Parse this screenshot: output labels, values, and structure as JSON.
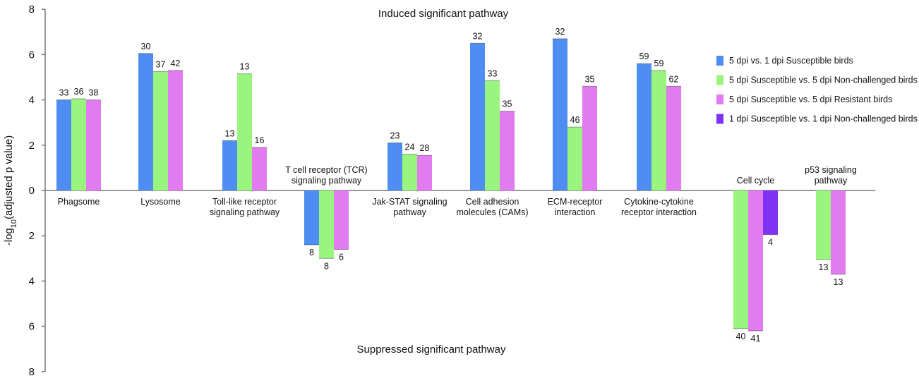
{
  "chart_data": {
    "type": "bar",
    "title": "Induced significant pathway",
    "subtitle": "Suppressed significant pathway",
    "ylabel": "-log10(adjusted p value)",
    "ylabel_parts": {
      "pre": "-log",
      "sub": "10",
      "post": "(adjusted p value)"
    },
    "ylim": [
      -8,
      8
    ],
    "y_ticks": [
      8,
      6,
      4,
      2,
      0,
      2,
      4,
      6,
      8
    ],
    "y_tick_values": [
      8,
      6,
      4,
      2,
      0,
      -2,
      -4,
      -6,
      -8
    ],
    "legend_position": "right",
    "series": [
      {
        "name": "5 dpi vs. 1 dpi Susceptible birds",
        "color": "#4e8ef2"
      },
      {
        "name": "5 dpi Susceptible vs. 5 dpi Non-challenged birds",
        "color": "#99f57e"
      },
      {
        "name": "5 dpi Susceptible vs. 5 dpi Resistant birds",
        "color": "#e27af0"
      },
      {
        "name": "1 dpi Susceptible vs. 1 dpi Non-challenged birds",
        "color": "#7d32f5"
      }
    ],
    "categories": [
      {
        "label": [
          "Phagsome"
        ],
        "label_position": "below",
        "bars": [
          {
            "series": 0,
            "value": 4.0,
            "label": "33"
          },
          {
            "series": 1,
            "value": 4.05,
            "label": "36"
          },
          {
            "series": 2,
            "value": 4.0,
            "label": "38"
          }
        ]
      },
      {
        "label": [
          "Lysosome"
        ],
        "label_position": "below",
        "bars": [
          {
            "series": 0,
            "value": 6.05,
            "label": "30"
          },
          {
            "series": 1,
            "value": 5.25,
            "label": "37"
          },
          {
            "series": 2,
            "value": 5.3,
            "label": "42"
          }
        ]
      },
      {
        "label": [
          "Toll-like receptor",
          "signaling pathway"
        ],
        "label_position": "below",
        "bars": [
          {
            "series": 0,
            "value": 2.2,
            "label": "13"
          },
          {
            "series": 1,
            "value": 5.15,
            "label": "13"
          },
          {
            "series": 2,
            "value": 1.9,
            "label": "16"
          }
        ]
      },
      {
        "label": [
          "T cell receptor (TCR)",
          "signaling pathway"
        ],
        "label_position": "above",
        "bars": [
          {
            "series": 0,
            "value": -2.4,
            "label": "8"
          },
          {
            "series": 1,
            "value": -3.0,
            "label": "8"
          },
          {
            "series": 2,
            "value": -2.6,
            "label": "6"
          }
        ]
      },
      {
        "label": [
          "Jak-STAT signaling",
          "pathway"
        ],
        "label_position": "below",
        "bars": [
          {
            "series": 0,
            "value": 2.1,
            "label": "23"
          },
          {
            "series": 1,
            "value": 1.6,
            "label": "24"
          },
          {
            "series": 2,
            "value": 1.55,
            "label": "28"
          }
        ]
      },
      {
        "label": [
          "Cell adhesion",
          "molecules (CAMs)"
        ],
        "label_position": "below",
        "bars": [
          {
            "series": 0,
            "value": 6.5,
            "label": "32"
          },
          {
            "series": 1,
            "value": 4.85,
            "label": "33"
          },
          {
            "series": 2,
            "value": 3.5,
            "label": "35"
          }
        ]
      },
      {
        "label": [
          "ECM-receptor",
          "interaction"
        ],
        "label_position": "below",
        "bars": [
          {
            "series": 0,
            "value": 6.7,
            "label": "32"
          },
          {
            "series": 1,
            "value": 2.8,
            "label": "46"
          },
          {
            "series": 2,
            "value": 4.6,
            "label": "35"
          }
        ]
      },
      {
        "label": [
          "Cytokine-cytokine",
          "receptor interaction"
        ],
        "label_position": "below",
        "bars": [
          {
            "series": 0,
            "value": 5.6,
            "label": "59"
          },
          {
            "series": 1,
            "value": 5.3,
            "label": "59"
          },
          {
            "series": 2,
            "value": 4.6,
            "label": "62"
          }
        ]
      },
      {
        "label": [
          "Cell cycle"
        ],
        "label_position": "above",
        "bars": [
          {
            "series": 1,
            "value": -6.1,
            "label": "40"
          },
          {
            "series": 2,
            "value": -6.2,
            "label": "41"
          },
          {
            "series": 3,
            "value": -1.95,
            "label": "4"
          }
        ]
      },
      {
        "label": [
          "p53 signaling",
          "pathway"
        ],
        "label_position": "above",
        "bars": [
          {
            "series": 1,
            "value": -3.05,
            "label": "13"
          },
          {
            "series": 2,
            "value": -3.7,
            "label": "13"
          }
        ]
      }
    ]
  }
}
